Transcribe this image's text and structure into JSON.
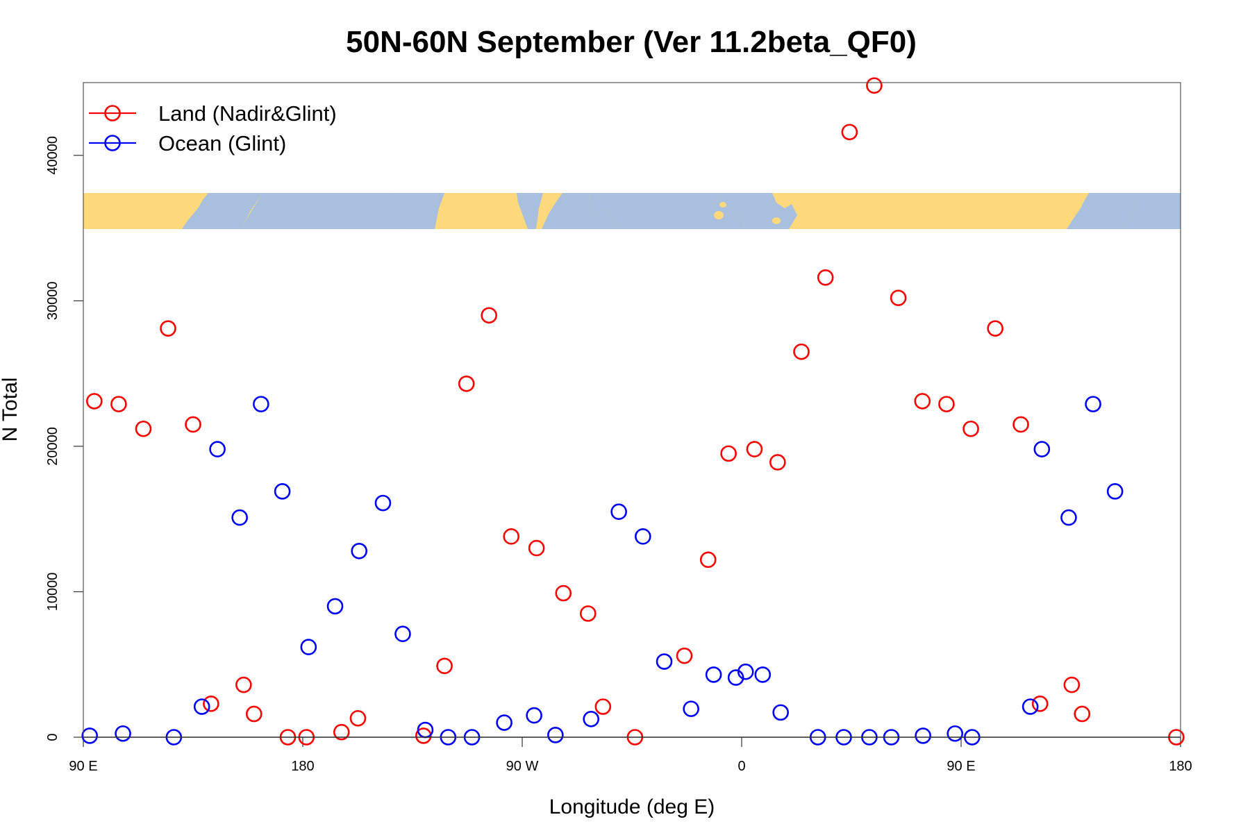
{
  "chart_data": {
    "type": "scatter",
    "title": "50N-60N September (Ver 11.2beta_QF0)",
    "xlabel": "Longitude (deg E)",
    "ylabel": "N Total",
    "xlim": [
      90,
      450
    ],
    "ylim": [
      0,
      45000
    ],
    "x_ticks": [
      {
        "value": 90,
        "label": "90 E"
      },
      {
        "value": 162,
        "label": "180"
      },
      {
        "value": 234,
        "label": "90 W"
      },
      {
        "value": 306,
        "label": "0"
      },
      {
        "value": 378,
        "label": "90 E"
      },
      {
        "value": 450,
        "label": "180"
      }
    ],
    "y_ticks": [
      0,
      10000,
      20000,
      30000,
      40000
    ],
    "map_strip": {
      "y_range": [
        35000,
        37400
      ],
      "land_color": "#FDD97B",
      "ocean_color": "#A8C0DE"
    },
    "legend": {
      "position": "top-left"
    },
    "series": [
      {
        "name": "Land (Nadir&Glint)",
        "color": "#FF0000",
        "points": [
          [
            93.6,
            23100
          ],
          [
            101.6,
            22900
          ],
          [
            109.7,
            21200
          ],
          [
            117.8,
            28100
          ],
          [
            126.0,
            21500
          ],
          [
            131.9,
            2300
          ],
          [
            142.6,
            3600
          ],
          [
            146.0,
            1600
          ],
          [
            157.1,
            0
          ],
          [
            163.2,
            0
          ],
          [
            174.7,
            350
          ],
          [
            180.1,
            1300
          ],
          [
            201.6,
            100
          ],
          [
            208.5,
            4900
          ],
          [
            215.7,
            24300
          ],
          [
            223.1,
            29000
          ],
          [
            230.4,
            13800
          ],
          [
            238.7,
            13000
          ],
          [
            247.5,
            9900
          ],
          [
            255.6,
            8500
          ],
          [
            260.5,
            2100
          ],
          [
            271.0,
            0
          ],
          [
            287.2,
            5600
          ],
          [
            295.0,
            12200
          ],
          [
            301.7,
            19500
          ],
          [
            310.2,
            19800
          ],
          [
            317.8,
            18900
          ],
          [
            325.6,
            26500
          ],
          [
            333.5,
            31600
          ],
          [
            341.4,
            41600
          ],
          [
            349.5,
            44800
          ],
          [
            357.4,
            30200
          ],
          [
            365.3,
            23100
          ],
          [
            373.2,
            22900
          ],
          [
            381.2,
            21200
          ],
          [
            389.2,
            28100
          ],
          [
            397.6,
            21500
          ],
          [
            403.9,
            2300
          ],
          [
            414.3,
            3600
          ],
          [
            417.7,
            1600
          ],
          [
            448.6,
            0
          ]
        ]
      },
      {
        "name": "Ocean (Glint)",
        "color": "#0000FF",
        "points": [
          [
            92.1,
            100
          ],
          [
            103.0,
            250
          ],
          [
            119.7,
            0
          ],
          [
            128.9,
            2100
          ],
          [
            134.0,
            19800
          ],
          [
            141.3,
            15100
          ],
          [
            148.3,
            22900
          ],
          [
            155.3,
            16900
          ],
          [
            163.9,
            6200
          ],
          [
            172.6,
            9000
          ],
          [
            180.5,
            12800
          ],
          [
            188.3,
            16100
          ],
          [
            194.8,
            7100
          ],
          [
            202.2,
            500
          ],
          [
            209.7,
            0
          ],
          [
            217.5,
            0
          ],
          [
            228.1,
            1000
          ],
          [
            237.9,
            1500
          ],
          [
            244.9,
            150
          ],
          [
            256.6,
            1250
          ],
          [
            265.7,
            15500
          ],
          [
            273.6,
            13800
          ],
          [
            280.6,
            5200
          ],
          [
            289.4,
            1950
          ],
          [
            296.8,
            4300
          ],
          [
            304.1,
            4100
          ],
          [
            307.3,
            4500
          ],
          [
            312.9,
            4300
          ],
          [
            318.8,
            1700
          ],
          [
            331.0,
            0
          ],
          [
            339.5,
            0
          ],
          [
            347.9,
            0
          ],
          [
            355.1,
            0
          ],
          [
            365.5,
            100
          ],
          [
            376.0,
            250
          ],
          [
            381.6,
            0
          ],
          [
            400.7,
            2100
          ],
          [
            404.5,
            19800
          ],
          [
            413.3,
            15100
          ],
          [
            421.3,
            22900
          ],
          [
            428.5,
            16900
          ]
        ]
      }
    ]
  }
}
